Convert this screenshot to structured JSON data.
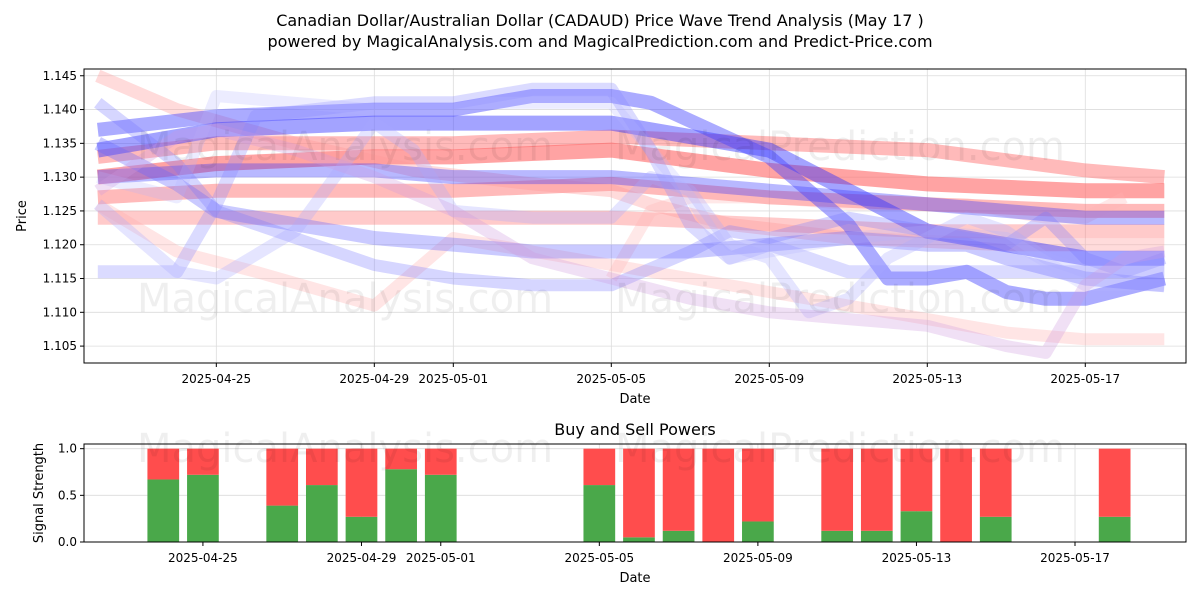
{
  "figure": {
    "title_line1": "Canadian Dollar/Australian Dollar (CADAUD) Price Wave Trend Analysis (May 17 )",
    "title_line2": "powered by MagicalAnalysis.com and MagicalPrediction.com and Predict-Price.com",
    "watermarks": [
      "MagicalAnalysis.com",
      "MagicalPrediction.com"
    ]
  },
  "chart_data": [
    {
      "type": "line",
      "title": "",
      "xlabel": "Date",
      "ylabel": "Price",
      "x_tick_labels": [
        "2025-04-25",
        "2025-04-29",
        "2025-05-01",
        "2025-05-05",
        "2025-05-09",
        "2025-05-13",
        "2025-05-17"
      ],
      "x_tick_days": [
        4,
        8,
        10,
        14,
        18,
        22,
        26
      ],
      "x_origin_date": "2025-04-21",
      "xlim_days": [
        0.65,
        28.55
      ],
      "y_ticks": [
        1.105,
        1.11,
        1.115,
        1.12,
        1.125,
        1.13,
        1.135,
        1.14,
        1.145
      ],
      "ylim": [
        1.1025,
        1.146
      ],
      "grid": true,
      "series": [
        {
          "color": "#ff6666",
          "alpha": 0.6,
          "width": 15,
          "x": [
            1,
            4,
            8,
            10,
            14,
            18,
            22,
            26,
            28
          ],
          "y": [
            1.13,
            1.132,
            1.133,
            1.133,
            1.134,
            1.131,
            1.129,
            1.128,
            1.128
          ]
        },
        {
          "color": "#ff6666",
          "alpha": 0.45,
          "width": 14,
          "x": [
            1,
            4,
            8,
            10,
            14,
            18,
            22,
            26,
            28
          ],
          "y": [
            1.127,
            1.128,
            1.128,
            1.128,
            1.129,
            1.127,
            1.126,
            1.125,
            1.125
          ]
        },
        {
          "color": "#ff6666",
          "alpha": 0.35,
          "width": 14,
          "x": [
            1,
            4,
            8,
            10,
            14,
            18,
            22,
            26,
            28
          ],
          "y": [
            1.124,
            1.124,
            1.124,
            1.124,
            1.124,
            1.123,
            1.122,
            1.122,
            1.122
          ]
        },
        {
          "color": "#ff6666",
          "alpha": 0.45,
          "width": 14,
          "x": [
            1,
            4,
            8,
            10,
            14,
            18,
            22,
            26,
            28
          ],
          "y": [
            1.133,
            1.135,
            1.135,
            1.135,
            1.136,
            1.135,
            1.134,
            1.131,
            1.13
          ]
        },
        {
          "color": "#ff9999",
          "alpha": 0.35,
          "width": 13,
          "x": [
            1,
            3,
            6,
            9,
            12,
            14,
            15,
            17,
            20,
            24,
            28
          ],
          "y": [
            1.145,
            1.14,
            1.135,
            1.131,
            1.129,
            1.128,
            1.126,
            1.123,
            1.121,
            1.12,
            1.12
          ]
        },
        {
          "color": "#ffaaaa",
          "alpha": 0.3,
          "width": 12,
          "x": [
            1,
            3,
            5,
            8,
            9,
            10,
            12,
            14,
            16,
            20,
            24,
            26,
            27,
            28
          ],
          "y": [
            1.126,
            1.119,
            1.116,
            1.111,
            1.116,
            1.121,
            1.119,
            1.117,
            1.115,
            1.111,
            1.107,
            1.106,
            1.106,
            1.106
          ]
        },
        {
          "color": "#ffb3b3",
          "alpha": 0.3,
          "width": 12,
          "x": [
            14,
            15,
            16,
            18,
            20,
            23,
            25,
            26,
            27
          ],
          "y": [
            1.115,
            1.125,
            1.127,
            1.127,
            1.126,
            1.126,
            1.124,
            1.124,
            1.127
          ]
        },
        {
          "color": "#3333ff",
          "alpha": 0.45,
          "width": 15,
          "x": [
            1,
            4,
            8,
            10,
            14,
            18,
            20,
            22,
            24,
            26,
            28
          ],
          "y": [
            1.134,
            1.137,
            1.138,
            1.138,
            1.138,
            1.134,
            1.128,
            1.122,
            1.12,
            1.118,
            1.118
          ]
        },
        {
          "color": "#3333ff",
          "alpha": 0.35,
          "width": 14,
          "x": [
            1,
            4,
            8,
            10,
            14,
            18,
            22,
            26,
            28
          ],
          "y": [
            1.13,
            1.131,
            1.131,
            1.13,
            1.13,
            1.128,
            1.126,
            1.124,
            1.124
          ]
        },
        {
          "color": "#4444ff",
          "alpha": 0.45,
          "width": 14,
          "x": [
            1,
            4,
            8,
            10,
            12,
            14,
            15,
            18,
            20,
            21,
            22,
            23,
            24,
            25,
            26,
            28
          ],
          "y": [
            1.137,
            1.139,
            1.14,
            1.14,
            1.142,
            1.142,
            1.141,
            1.133,
            1.123,
            1.115,
            1.115,
            1.116,
            1.113,
            1.112,
            1.112,
            1.115
          ]
        },
        {
          "color": "#6666ff",
          "alpha": 0.35,
          "width": 14,
          "x": [
            1,
            3,
            4,
            6,
            8,
            10,
            12,
            14,
            16,
            18,
            20,
            22,
            23,
            24,
            26,
            28
          ],
          "y": [
            1.135,
            1.129,
            1.125,
            1.123,
            1.121,
            1.12,
            1.119,
            1.119,
            1.119,
            1.12,
            1.121,
            1.12,
            1.12,
            1.118,
            1.115,
            1.114
          ]
        },
        {
          "color": "#7777ff",
          "alpha": 0.3,
          "width": 12,
          "x": [
            1,
            3,
            4,
            6,
            8,
            10,
            12,
            14,
            16,
            17,
            18,
            20,
            22,
            23,
            24,
            25,
            26,
            27,
            28
          ],
          "y": [
            1.141,
            1.132,
            1.125,
            1.121,
            1.117,
            1.115,
            1.114,
            1.114,
            1.119,
            1.122,
            1.121,
            1.124,
            1.122,
            1.121,
            1.12,
            1.124,
            1.118,
            1.116,
            1.118
          ]
        },
        {
          "color": "#8888ff",
          "alpha": 0.3,
          "width": 13,
          "x": [
            1,
            3,
            4,
            5,
            8,
            9,
            10,
            12,
            13,
            14,
            15,
            16,
            17,
            18,
            20,
            21,
            22,
            23,
            24,
            26,
            28
          ],
          "y": [
            1.116,
            1.116,
            1.126,
            1.139,
            1.141,
            1.141,
            1.141,
            1.143,
            1.143,
            1.143,
            1.134,
            1.123,
            1.118,
            1.12,
            1.116,
            1.116,
            1.116,
            1.116,
            1.116,
            1.116,
            1.116
          ]
        },
        {
          "color": "#aaaaff",
          "alpha": 0.3,
          "width": 12,
          "x": [
            1,
            3,
            4,
            6,
            8,
            9,
            10,
            12,
            14,
            15,
            16,
            17,
            18,
            19,
            20,
            21,
            22,
            23,
            24,
            25,
            26,
            27,
            28
          ],
          "y": [
            1.126,
            1.116,
            1.115,
            1.122,
            1.138,
            1.134,
            1.125,
            1.124,
            1.124,
            1.13,
            1.128,
            1.12,
            1.118,
            1.11,
            1.112,
            1.118,
            1.121,
            1.124,
            1.122,
            1.118,
            1.116,
            1.116,
            1.116
          ]
        },
        {
          "color": "#b3b3ff",
          "alpha": 0.25,
          "width": 12,
          "x": [
            1,
            3,
            4,
            6,
            8,
            10,
            11,
            12,
            14,
            15,
            16,
            17,
            18,
            20,
            22,
            24,
            26,
            28
          ],
          "y": [
            1.13,
            1.127,
            1.142,
            1.141,
            1.14,
            1.14,
            1.141,
            1.141,
            1.141,
            1.134,
            1.127,
            1.118,
            1.119,
            1.121,
            1.122,
            1.121,
            1.114,
            1.114
          ]
        },
        {
          "color": "#cc99dd",
          "alpha": 0.3,
          "width": 12,
          "x": [
            1,
            3,
            4,
            6,
            8,
            10,
            12,
            14,
            16,
            18,
            20,
            22,
            24,
            25,
            26,
            27,
            28
          ],
          "y": [
            1.128,
            1.136,
            1.137,
            1.134,
            1.13,
            1.125,
            1.118,
            1.115,
            1.112,
            1.11,
            1.109,
            1.108,
            1.105,
            1.104,
            1.114,
            1.118,
            1.119
          ]
        }
      ]
    },
    {
      "type": "bar",
      "title": "Buy and Sell Powers",
      "xlabel": "Date",
      "ylabel": "Signal Strength",
      "x_tick_labels": [
        "2025-04-25",
        "2025-04-29",
        "2025-05-01",
        "2025-05-05",
        "2025-05-09",
        "2025-05-13",
        "2025-05-17"
      ],
      "x_tick_days": [
        4,
        8,
        10,
        14,
        18,
        22,
        26
      ],
      "x_origin_date": "2025-04-21",
      "xlim_days": [
        1.0,
        28.8
      ],
      "y_ticks": [
        "0.0",
        "0.5",
        "1.0"
      ],
      "ylim": [
        0,
        1.05
      ],
      "grid": true,
      "buy_color": "#4aa84a",
      "sell_color": "#ff4d4d",
      "x_days": [
        3,
        4,
        6,
        7,
        8,
        9,
        10,
        14,
        15,
        16,
        17,
        18,
        20,
        21,
        22,
        23,
        24,
        27
      ],
      "buy": [
        0.67,
        0.72,
        0.39,
        0.61,
        0.27,
        0.78,
        0.72,
        0.61,
        0.05,
        0.12,
        0.0,
        0.22,
        0.12,
        0.12,
        0.33,
        0.0,
        0.27,
        0.27
      ],
      "sell": [
        0.33,
        0.28,
        0.61,
        0.39,
        0.73,
        0.22,
        0.28,
        0.39,
        0.95,
        0.88,
        1.0,
        0.78,
        0.88,
        0.88,
        0.67,
        1.0,
        0.73,
        0.73
      ]
    }
  ]
}
